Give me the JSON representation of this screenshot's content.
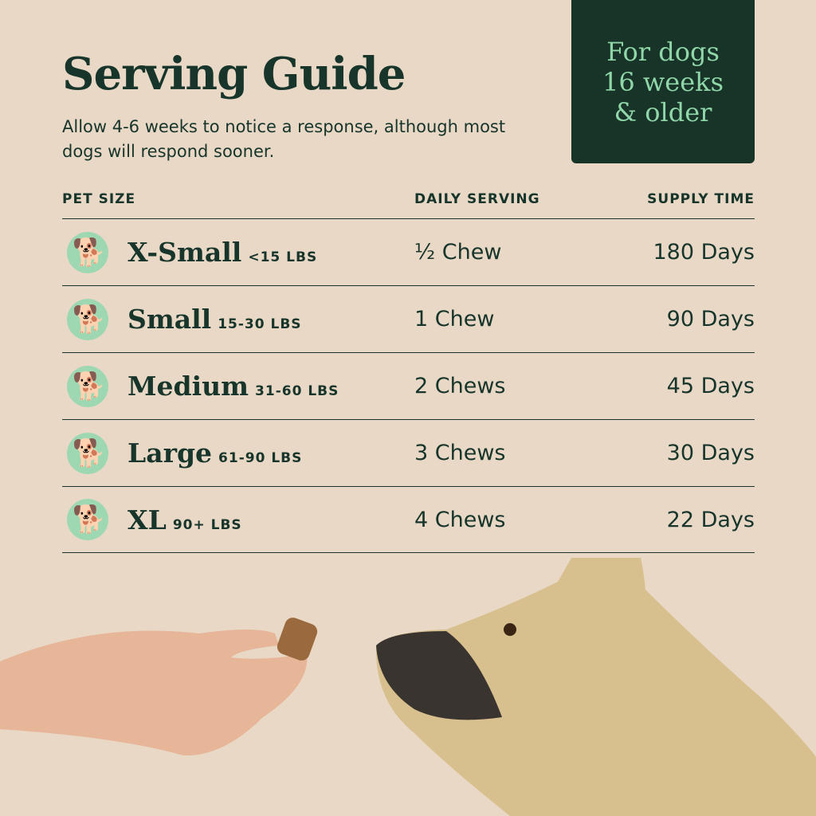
{
  "title": "Serving Guide",
  "subtitle": "Allow 4-6 weeks to notice a response, although most dogs will respond sooner.",
  "badge": {
    "line1": "For dogs",
    "line2": "16 weeks",
    "line3": "& older"
  },
  "headers": {
    "size": "PET SIZE",
    "serving": "DAILY SERVING",
    "supply": "SUPPLY TIME"
  },
  "rows": [
    {
      "icon": "chihuahua-icon",
      "name": "X-Small",
      "weight": "<15 LBS",
      "serving": "½ Chew",
      "supply": "180 Days"
    },
    {
      "icon": "dachshund-icon",
      "name": "Small",
      "weight": "15-30 LBS",
      "serving": "1 Chew",
      "supply": "90 Days"
    },
    {
      "icon": "bulldog-icon",
      "name": "Medium",
      "weight": "31-60 LBS",
      "serving": "2 Chews",
      "supply": "45 Days"
    },
    {
      "icon": "retriever-icon",
      "name": "Large",
      "weight": "61-90 LBS",
      "serving": "3 Chews",
      "supply": "30 Days"
    },
    {
      "icon": "doberman-icon",
      "name": "XL",
      "weight": "90+ LBS",
      "serving": "4 Chews",
      "supply": "22 Days"
    }
  ],
  "colors": {
    "background": "#e8d8c5",
    "text": "#17352b",
    "accent": "#9ed8b2",
    "badge": "#183428"
  }
}
